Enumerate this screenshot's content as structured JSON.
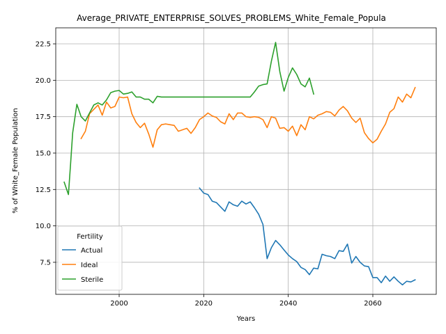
{
  "chart_data": {
    "type": "line",
    "title": "Average_PRIVATE_ENTERPRISE_SOLVES_PROBLEMS_White_Female_Popula",
    "xlabel": "Years",
    "ylabel": "% of White_Female Population",
    "xlim": [
      1985,
      2075
    ],
    "ylim": [
      5.3,
      23.6
    ],
    "xticks": [
      2000,
      2020,
      2040,
      2060
    ],
    "yticks": [
      7.5,
      10.0,
      12.5,
      15.0,
      17.5,
      20.0,
      22.5
    ],
    "grid": true,
    "legend": {
      "title": "Fertility",
      "position": "lower-left"
    },
    "series": [
      {
        "name": "Actual",
        "color": "#1f77b4",
        "points": [
          [
            2019,
            12.6
          ],
          [
            2020,
            12.25
          ],
          [
            2021,
            12.15
          ],
          [
            2022,
            11.7
          ],
          [
            2023,
            11.6
          ],
          [
            2024,
            11.3
          ],
          [
            2025,
            11.0
          ],
          [
            2026,
            11.65
          ],
          [
            2027,
            11.45
          ],
          [
            2028,
            11.35
          ],
          [
            2029,
            11.7
          ],
          [
            2030,
            11.5
          ],
          [
            2031,
            11.65
          ],
          [
            2032,
            11.25
          ],
          [
            2033,
            10.8
          ],
          [
            2034,
            10.1
          ],
          [
            2035,
            7.75
          ],
          [
            2036,
            8.5
          ],
          [
            2037,
            9.0
          ],
          [
            2038,
            8.7
          ],
          [
            2039,
            8.35
          ],
          [
            2040,
            8.0
          ],
          [
            2041,
            7.75
          ],
          [
            2042,
            7.55
          ],
          [
            2043,
            7.15
          ],
          [
            2044,
            7.0
          ],
          [
            2045,
            6.65
          ],
          [
            2046,
            7.1
          ],
          [
            2047,
            7.05
          ],
          [
            2048,
            8.05
          ],
          [
            2049,
            7.95
          ],
          [
            2050,
            7.9
          ],
          [
            2051,
            7.75
          ],
          [
            2052,
            8.3
          ],
          [
            2053,
            8.25
          ],
          [
            2054,
            8.75
          ],
          [
            2055,
            7.45
          ],
          [
            2056,
            7.9
          ],
          [
            2057,
            7.5
          ],
          [
            2058,
            7.25
          ],
          [
            2059,
            7.2
          ],
          [
            2060,
            6.45
          ],
          [
            2061,
            6.45
          ],
          [
            2062,
            6.1
          ],
          [
            2063,
            6.55
          ],
          [
            2064,
            6.2
          ],
          [
            2065,
            6.5
          ],
          [
            2066,
            6.2
          ],
          [
            2067,
            5.95
          ],
          [
            2068,
            6.2
          ],
          [
            2069,
            6.15
          ],
          [
            2070,
            6.3
          ]
        ]
      },
      {
        "name": "Ideal",
        "color": "#ff7f0e",
        "points": [
          [
            1991,
            16.0
          ],
          [
            1992,
            16.5
          ],
          [
            1993,
            17.7
          ],
          [
            1994,
            18.0
          ],
          [
            1995,
            18.3
          ],
          [
            1996,
            17.6
          ],
          [
            1997,
            18.5
          ],
          [
            1998,
            18.1
          ],
          [
            1999,
            18.2
          ],
          [
            2000,
            18.85
          ],
          [
            2001,
            18.8
          ],
          [
            2002,
            18.85
          ],
          [
            2003,
            17.7
          ],
          [
            2004,
            17.1
          ],
          [
            2005,
            16.75
          ],
          [
            2006,
            17.05
          ],
          [
            2007,
            16.3
          ],
          [
            2008,
            15.4
          ],
          [
            2009,
            16.6
          ],
          [
            2010,
            16.95
          ],
          [
            2011,
            17.0
          ],
          [
            2012,
            16.95
          ],
          [
            2013,
            16.9
          ],
          [
            2014,
            16.5
          ],
          [
            2015,
            16.6
          ],
          [
            2016,
            16.7
          ],
          [
            2017,
            16.35
          ],
          [
            2018,
            16.75
          ],
          [
            2019,
            17.3
          ],
          [
            2020,
            17.5
          ],
          [
            2021,
            17.75
          ],
          [
            2022,
            17.55
          ],
          [
            2023,
            17.45
          ],
          [
            2024,
            17.15
          ],
          [
            2025,
            17.0
          ],
          [
            2026,
            17.7
          ],
          [
            2027,
            17.3
          ],
          [
            2028,
            17.75
          ],
          [
            2029,
            17.75
          ],
          [
            2030,
            17.5
          ],
          [
            2031,
            17.45
          ],
          [
            2032,
            17.5
          ],
          [
            2033,
            17.45
          ],
          [
            2034,
            17.3
          ],
          [
            2035,
            16.75
          ],
          [
            2036,
            17.5
          ],
          [
            2037,
            17.4
          ],
          [
            2038,
            16.7
          ],
          [
            2039,
            16.75
          ],
          [
            2040,
            16.5
          ],
          [
            2041,
            16.85
          ],
          [
            2042,
            16.2
          ],
          [
            2043,
            16.95
          ],
          [
            2044,
            16.6
          ],
          [
            2045,
            17.5
          ],
          [
            2046,
            17.35
          ],
          [
            2047,
            17.6
          ],
          [
            2048,
            17.7
          ],
          [
            2049,
            17.85
          ],
          [
            2050,
            17.8
          ],
          [
            2051,
            17.55
          ],
          [
            2052,
            17.95
          ],
          [
            2053,
            18.2
          ],
          [
            2054,
            17.9
          ],
          [
            2055,
            17.4
          ],
          [
            2056,
            17.1
          ],
          [
            2057,
            17.4
          ],
          [
            2058,
            16.4
          ],
          [
            2059,
            16.0
          ],
          [
            2060,
            15.7
          ],
          [
            2061,
            15.95
          ],
          [
            2062,
            16.5
          ],
          [
            2063,
            17.0
          ],
          [
            2064,
            17.8
          ],
          [
            2065,
            18.05
          ],
          [
            2066,
            18.85
          ],
          [
            2067,
            18.5
          ],
          [
            2068,
            19.05
          ],
          [
            2069,
            18.8
          ],
          [
            2070,
            19.5
          ]
        ]
      },
      {
        "name": "Sterile",
        "color": "#2ca02c",
        "points": [
          [
            1987,
            13.0
          ],
          [
            1988,
            12.15
          ],
          [
            1988.5,
            14.2
          ],
          [
            1989,
            16.4
          ],
          [
            1990,
            18.35
          ],
          [
            1991,
            17.5
          ],
          [
            1992,
            17.2
          ],
          [
            1993,
            17.75
          ],
          [
            1994,
            18.3
          ],
          [
            1995,
            18.45
          ],
          [
            1996,
            18.3
          ],
          [
            1997,
            18.65
          ],
          [
            1998,
            19.15
          ],
          [
            1999,
            19.25
          ],
          [
            2000,
            19.3
          ],
          [
            2001,
            19.05
          ],
          [
            2002,
            19.1
          ],
          [
            2003,
            19.2
          ],
          [
            2004,
            18.85
          ],
          [
            2005,
            18.85
          ],
          [
            2006,
            18.7
          ],
          [
            2007,
            18.7
          ],
          [
            2008,
            18.45
          ],
          [
            2009,
            18.9
          ],
          [
            2010,
            18.85
          ],
          [
            2015,
            18.85
          ],
          [
            2020,
            18.85
          ],
          [
            2025,
            18.85
          ],
          [
            2030,
            18.85
          ],
          [
            2031,
            18.85
          ],
          [
            2032,
            19.2
          ],
          [
            2033,
            19.6
          ],
          [
            2034,
            19.7
          ],
          [
            2035,
            19.75
          ],
          [
            2036,
            21.3
          ],
          [
            2037,
            22.6
          ],
          [
            2038,
            20.6
          ],
          [
            2039,
            19.25
          ],
          [
            2040,
            20.2
          ],
          [
            2041,
            20.85
          ],
          [
            2042,
            20.4
          ],
          [
            2043,
            19.75
          ],
          [
            2044,
            19.55
          ],
          [
            2045,
            20.15
          ],
          [
            2046,
            19.05
          ]
        ]
      }
    ]
  }
}
